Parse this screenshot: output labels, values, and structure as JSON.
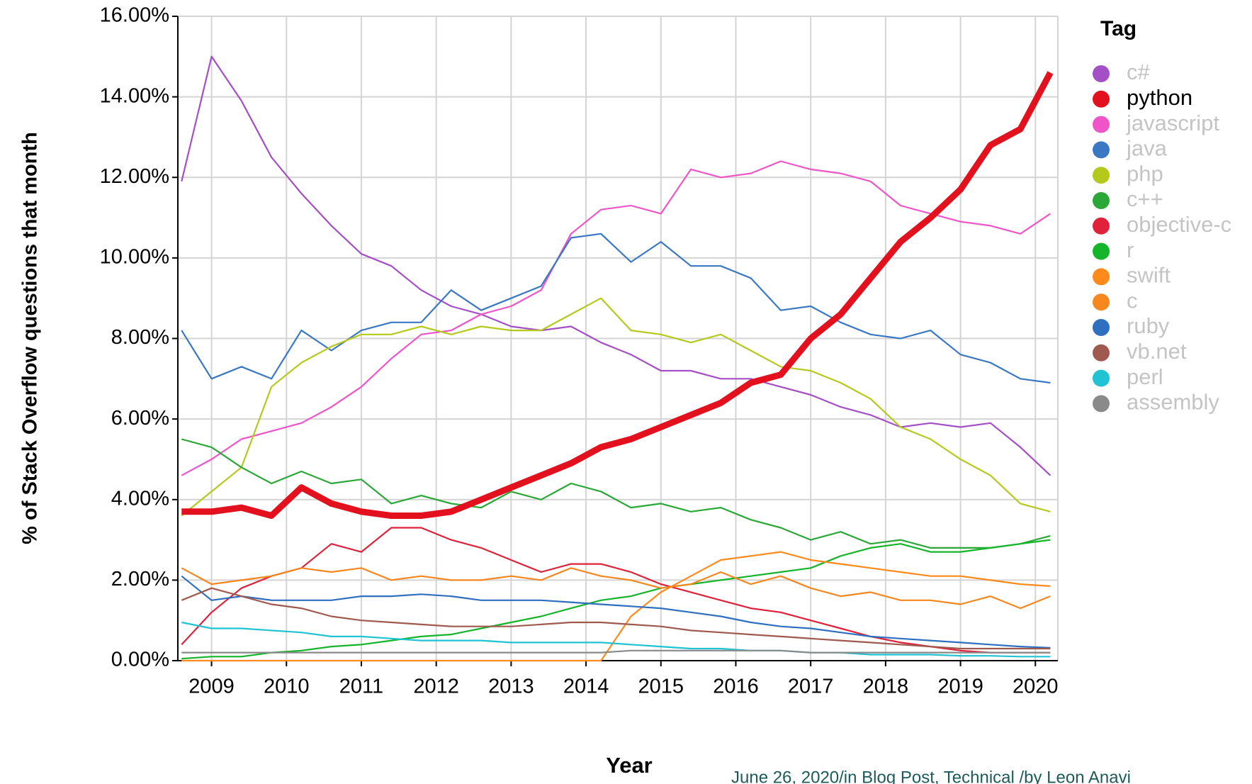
{
  "chart_data": {
    "type": "line",
    "y_label": "% of Stack Overflow questions that month",
    "x_label": "Year",
    "legend_title": "Tag",
    "byline": "June 26, 2020/in Blog Post, Technical /by Leon Anavi",
    "highlight": "python",
    "grid": true,
    "xlim": [
      2008.55,
      2020.3
    ],
    "xticks": [
      2009,
      2010,
      2011,
      2012,
      2013,
      2014,
      2015,
      2016,
      2017,
      2018,
      2019,
      2020
    ],
    "ylim": [
      0,
      16
    ],
    "yticks": [
      {
        "value": 0,
        "label": "0.00%"
      },
      {
        "value": 2,
        "label": "2.00%"
      },
      {
        "value": 4,
        "label": "4.00%"
      },
      {
        "value": 6,
        "label": "6.00%"
      },
      {
        "value": 8,
        "label": "8.00%"
      },
      {
        "value": 10,
        "label": "10.00%"
      },
      {
        "value": 12,
        "label": "12.00%"
      },
      {
        "value": 14,
        "label": "14.00%"
      },
      {
        "value": 16,
        "label": "16.00%"
      }
    ],
    "x": [
      2008.6,
      2009.0,
      2009.4,
      2009.8,
      2010.2,
      2010.6,
      2011.0,
      2011.4,
      2011.8,
      2012.2,
      2012.6,
      2013.0,
      2013.4,
      2013.8,
      2014.2,
      2014.6,
      2015.0,
      2015.4,
      2015.8,
      2016.2,
      2016.6,
      2017.0,
      2017.4,
      2017.8,
      2018.2,
      2018.6,
      2019.0,
      2019.4,
      2019.8,
      2020.2
    ],
    "series": [
      {
        "name": "c#",
        "color": "#a44fc6",
        "values": [
          11.9,
          15.0,
          13.9,
          12.5,
          11.6,
          10.8,
          10.1,
          9.8,
          9.2,
          8.8,
          8.6,
          8.3,
          8.2,
          8.3,
          7.9,
          7.6,
          7.2,
          7.2,
          7.0,
          7.0,
          6.8,
          6.6,
          6.3,
          6.1,
          5.8,
          5.9,
          5.8,
          5.9,
          5.3,
          4.6
        ]
      },
      {
        "name": "python",
        "color": "#e3101e",
        "values": [
          3.7,
          3.7,
          3.8,
          3.6,
          4.3,
          3.9,
          3.7,
          3.6,
          3.6,
          3.7,
          4.0,
          4.3,
          4.6,
          4.9,
          5.3,
          5.5,
          5.8,
          6.1,
          6.4,
          6.9,
          7.1,
          8.0,
          8.6,
          9.5,
          10.4,
          11.0,
          11.7,
          12.8,
          13.2,
          14.6
        ]
      },
      {
        "name": "javascript",
        "color": "#f055c8",
        "values": [
          4.6,
          5.0,
          5.5,
          5.7,
          5.9,
          6.3,
          6.8,
          7.5,
          8.1,
          8.2,
          8.6,
          8.8,
          9.2,
          10.6,
          11.2,
          11.3,
          11.1,
          12.2,
          12.0,
          12.1,
          12.4,
          12.2,
          12.1,
          11.9,
          11.3,
          11.1,
          10.9,
          10.8,
          10.6,
          11.1
        ]
      },
      {
        "name": "java",
        "color": "#3b78c3",
        "values": [
          8.2,
          7.0,
          7.3,
          7.0,
          8.2,
          7.7,
          8.2,
          8.4,
          8.4,
          9.2,
          8.7,
          9.0,
          9.3,
          10.5,
          10.6,
          9.9,
          10.4,
          9.8,
          9.8,
          9.5,
          8.7,
          8.8,
          8.4,
          8.1,
          8.0,
          8.2,
          7.6,
          7.4,
          7.0,
          6.9
        ]
      },
      {
        "name": "php",
        "color": "#b5c91d",
        "values": [
          3.6,
          4.2,
          4.8,
          6.8,
          7.4,
          7.8,
          8.1,
          8.1,
          8.3,
          8.1,
          8.3,
          8.2,
          8.2,
          8.6,
          9.0,
          8.2,
          8.1,
          7.9,
          8.1,
          7.7,
          7.3,
          7.2,
          6.9,
          6.5,
          5.8,
          5.5,
          5.0,
          4.6,
          3.9,
          3.7
        ]
      },
      {
        "name": "c++",
        "color": "#2aa837",
        "values": [
          5.5,
          5.3,
          4.8,
          4.4,
          4.7,
          4.4,
          4.5,
          3.9,
          4.1,
          3.9,
          3.8,
          4.2,
          4.0,
          4.4,
          4.2,
          3.8,
          3.9,
          3.7,
          3.8,
          3.5,
          3.3,
          3.0,
          3.2,
          2.9,
          3.0,
          2.8,
          2.8,
          2.8,
          2.9,
          3.1
        ]
      },
      {
        "name": "objective-c",
        "color": "#e0213a",
        "values": [
          0.4,
          1.2,
          1.8,
          2.1,
          2.3,
          2.9,
          2.7,
          3.3,
          3.3,
          3.0,
          2.8,
          2.5,
          2.2,
          2.4,
          2.4,
          2.2,
          1.9,
          1.7,
          1.5,
          1.3,
          1.2,
          1.0,
          0.8,
          0.6,
          0.45,
          0.35,
          0.25,
          0.2,
          0.2,
          0.2
        ]
      },
      {
        "name": "r",
        "color": "#14b52a",
        "values": [
          0.05,
          0.1,
          0.1,
          0.2,
          0.25,
          0.35,
          0.4,
          0.5,
          0.6,
          0.65,
          0.8,
          0.95,
          1.1,
          1.3,
          1.5,
          1.6,
          1.8,
          1.9,
          2.0,
          2.1,
          2.2,
          2.3,
          2.6,
          2.8,
          2.9,
          2.7,
          2.7,
          2.8,
          2.9,
          3.0
        ]
      },
      {
        "name": "swift",
        "color": "#ff8a1c",
        "values": [
          0,
          0,
          0,
          0,
          0,
          0,
          0,
          0,
          0,
          0,
          0,
          0,
          0,
          0,
          0,
          1.1,
          1.7,
          2.1,
          2.5,
          2.6,
          2.7,
          2.5,
          2.4,
          2.3,
          2.2,
          2.1,
          2.1,
          2.0,
          1.9,
          1.85
        ]
      },
      {
        "name": "c",
        "color": "#f6871f",
        "values": [
          2.3,
          1.9,
          2.0,
          2.1,
          2.3,
          2.2,
          2.3,
          2.0,
          2.1,
          2.0,
          2.0,
          2.1,
          2.0,
          2.3,
          2.1,
          2.0,
          1.8,
          1.9,
          2.2,
          1.9,
          2.1,
          1.8,
          1.6,
          1.7,
          1.5,
          1.5,
          1.4,
          1.6,
          1.3,
          1.6
        ]
      },
      {
        "name": "ruby",
        "color": "#2f6fbf",
        "values": [
          2.1,
          1.5,
          1.6,
          1.5,
          1.5,
          1.5,
          1.6,
          1.6,
          1.65,
          1.6,
          1.5,
          1.5,
          1.5,
          1.45,
          1.4,
          1.35,
          1.3,
          1.2,
          1.1,
          0.95,
          0.85,
          0.8,
          0.7,
          0.6,
          0.55,
          0.5,
          0.45,
          0.4,
          0.35,
          0.32
        ]
      },
      {
        "name": "vb.net",
        "color": "#a0594e",
        "values": [
          1.5,
          1.8,
          1.6,
          1.4,
          1.3,
          1.1,
          1.0,
          0.95,
          0.9,
          0.85,
          0.85,
          0.85,
          0.9,
          0.95,
          0.95,
          0.9,
          0.85,
          0.75,
          0.7,
          0.65,
          0.6,
          0.55,
          0.5,
          0.45,
          0.4,
          0.35,
          0.3,
          0.3,
          0.3,
          0.3
        ]
      },
      {
        "name": "perl",
        "color": "#1fc3d3",
        "values": [
          0.95,
          0.8,
          0.8,
          0.75,
          0.7,
          0.6,
          0.6,
          0.55,
          0.5,
          0.5,
          0.5,
          0.45,
          0.45,
          0.45,
          0.45,
          0.4,
          0.35,
          0.3,
          0.3,
          0.25,
          0.25,
          0.2,
          0.2,
          0.15,
          0.15,
          0.15,
          0.12,
          0.12,
          0.1,
          0.1
        ]
      },
      {
        "name": "assembly",
        "color": "#8a8a8a",
        "values": [
          0.2,
          0.2,
          0.2,
          0.2,
          0.2,
          0.2,
          0.2,
          0.2,
          0.2,
          0.2,
          0.2,
          0.2,
          0.2,
          0.2,
          0.2,
          0.25,
          0.25,
          0.25,
          0.25,
          0.25,
          0.25,
          0.2,
          0.2,
          0.2,
          0.2,
          0.2,
          0.2,
          0.2,
          0.2,
          0.2
        ]
      }
    ]
  }
}
